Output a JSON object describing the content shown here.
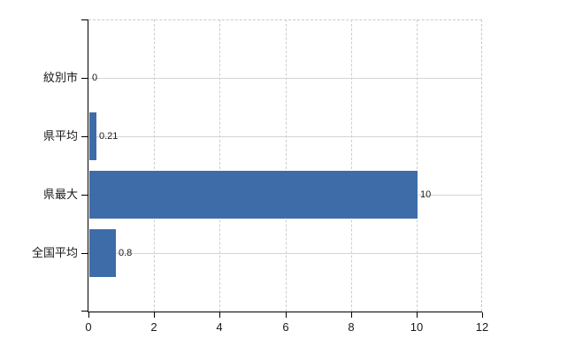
{
  "chart_data": {
    "type": "bar",
    "orientation": "horizontal",
    "title": "",
    "categories": [
      "紋別市",
      "県平均",
      "県最大",
      "全国平均"
    ],
    "values": [
      0,
      0.21,
      10,
      0.8
    ],
    "value_labels": [
      "0",
      "0.21",
      "10",
      "0.8"
    ],
    "xlim": [
      0,
      12
    ],
    "x_ticks": [
      0,
      2,
      4,
      6,
      8,
      10,
      12
    ],
    "x_tick_labels": [
      "0",
      "2",
      "4",
      "6",
      "8",
      "10",
      "12"
    ],
    "xlabel": "",
    "ylabel": "",
    "grid": true,
    "legend": "none",
    "bar_color": "#3e6ca8",
    "axis_color": "#000000",
    "gridline_color": "#d5d5d5",
    "border_color": "#c9c9c9",
    "text_color": "#1a1a1a",
    "background_color": "#ffffff"
  }
}
